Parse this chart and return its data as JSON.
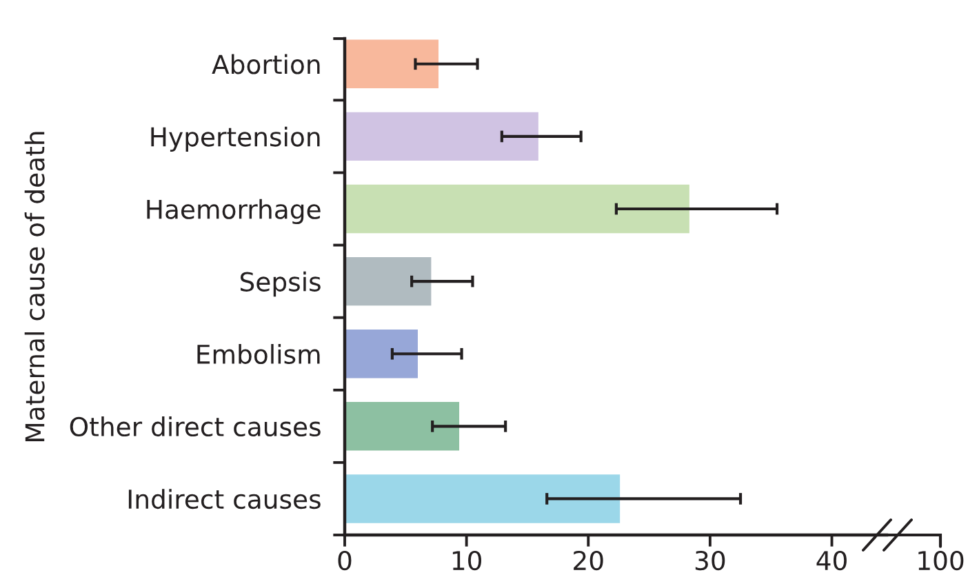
{
  "chart_data": {
    "type": "bar",
    "orientation": "horizontal",
    "ylabel": "Maternal cause of death",
    "categories": [
      "Abortion",
      "Hypertension",
      "Haemorrhage",
      "Sepsis",
      "Embolism",
      "Other direct causes",
      "Indirect causes"
    ],
    "values": [
      7.7,
      15.9,
      28.3,
      7.1,
      6.0,
      9.4,
      22.6
    ],
    "colors": [
      "#f8b89c",
      "#d0c3e3",
      "#c8e0b3",
      "#b0bbc0",
      "#97a7d8",
      "#8dc0a2",
      "#9bd7e9"
    ],
    "errors": [
      [
        5.8,
        10.9
      ],
      [
        12.9,
        19.4
      ],
      [
        22.3,
        35.5
      ],
      [
        5.5,
        10.5
      ],
      [
        3.9,
        9.6
      ],
      [
        7.2,
        13.2
      ],
      [
        16.6,
        32.5
      ]
    ],
    "xlim": [
      0,
      44.5
    ],
    "xticks": [
      0,
      10,
      20,
      30,
      40
    ],
    "annotations": [
      "100"
    ]
  }
}
